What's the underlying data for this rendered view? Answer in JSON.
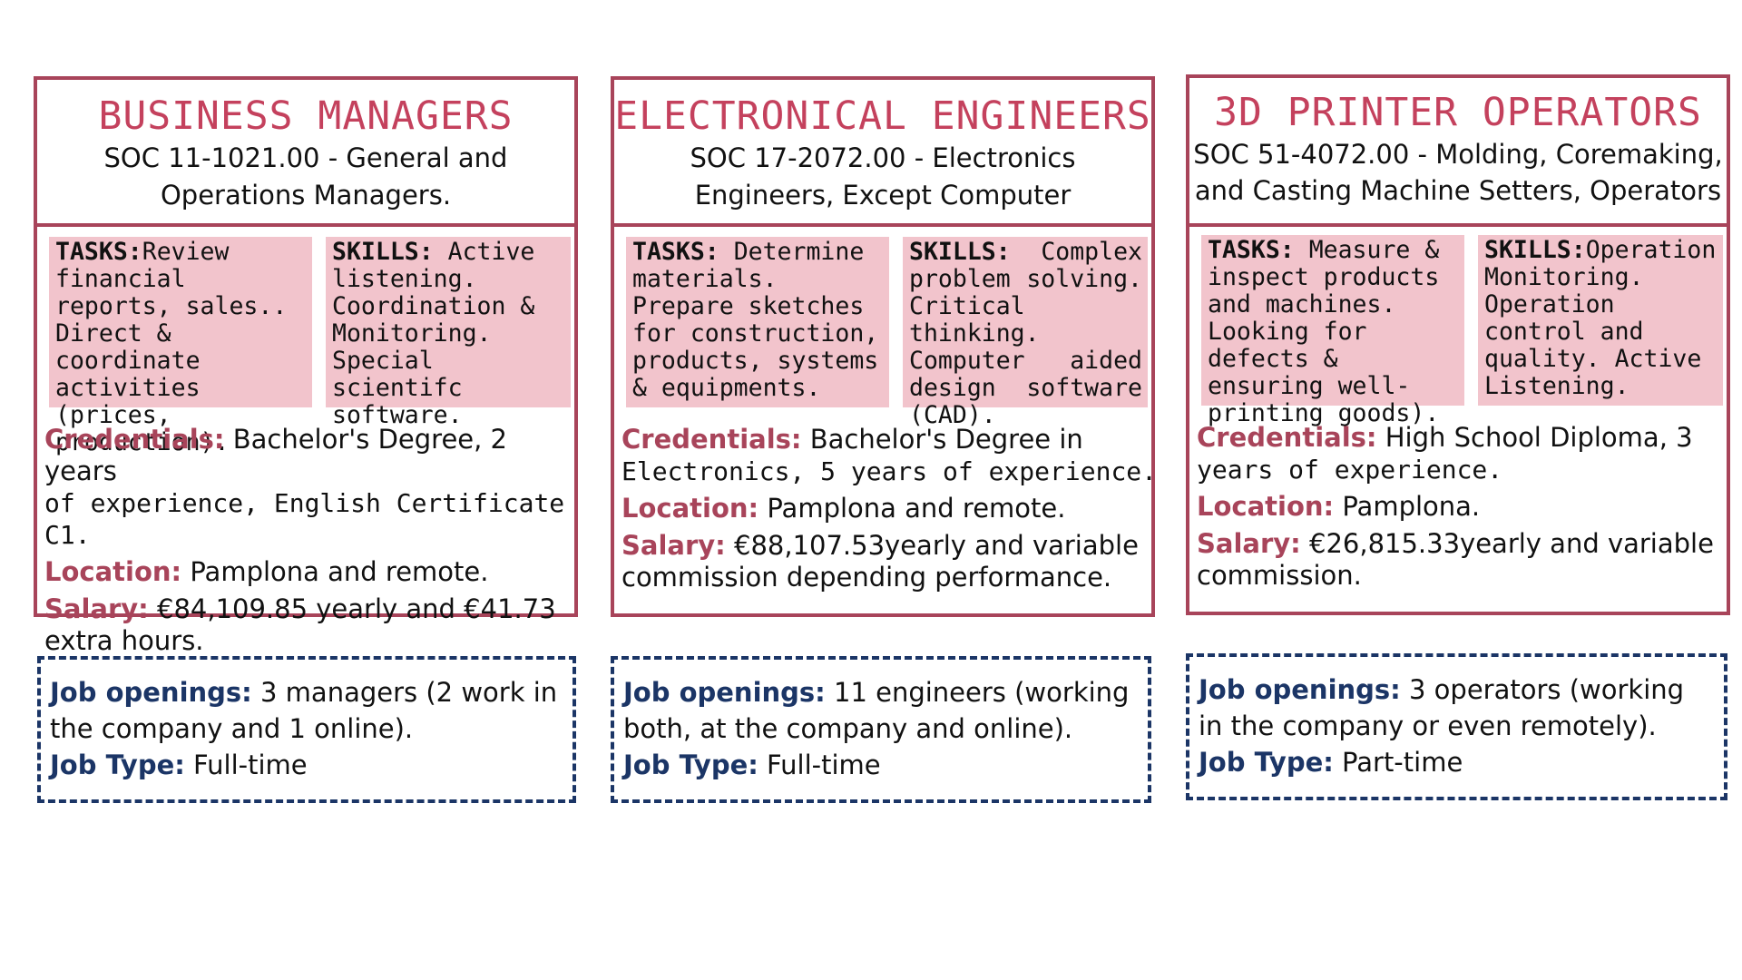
{
  "cards": [
    {
      "title": "BUSINESS MANAGERS",
      "soc_line1": "SOC 11-1021.00 - General and",
      "soc_line2": "Operations Managers.",
      "tasks_label": "TASKS:",
      "tasks_text": "Review financial reports, sales.. Direct & coordinate activities (prices, production).",
      "skills_label": "SKILLS:",
      "skills_text": " Active listening. Coordination & Monitoring. Special scientifc software.",
      "credentials_label": "Credentials:",
      "credentials_text": " Bachelor's Degree, 2 years",
      "credentials_text2": "of experience, English Certificate C1.",
      "location_label": "Location:",
      "location_text": " Pamplona and remote.",
      "salary_label": "Salary:",
      "salary_text": " €84,109.85 yearly and €41.73",
      "salary_text2": "extra hours.",
      "openings_label": "Job openings:",
      "openings_text": " 3 managers (2 work in",
      "openings_text2": "the company and 1 online).",
      "type_label": "Job Type:",
      "type_text": " Full-time"
    },
    {
      "title": "ELECTRONICAL ENGINEERS",
      "soc_line1": "SOC 17-2072.00 - Electronics",
      "soc_line2": "Engineers, Except Computer",
      "tasks_label": "TASKS:",
      "tasks_text": " Determine materials. Prepare sketches for construction, products, systems & equipments.",
      "skills_label": "SKILLS:",
      "skills_text": " Complex problem solving. Critical thinking. Computer aided design software (CAD).",
      "credentials_label": "Credentials:",
      "credentials_text": " Bachelor's Degree in",
      "credentials_text2": "Electronics, 5 years of experience.",
      "location_label": "Location:",
      "location_text": " Pamplona and remote.",
      "salary_label": "Salary:",
      "salary_text": " €88,107.53yearly and variable",
      "salary_text2": "commission depending performance.",
      "openings_label": "Job openings:",
      "openings_text": " 11 engineers (working",
      "openings_text2": "both, at the company and online).",
      "type_label": "Job Type:",
      "type_text": " Full-time"
    },
    {
      "title": "3D PRINTER OPERATORS",
      "soc_line1": "SOC 51-4072.00 - Molding, Coremaking,",
      "soc_line2": "and Casting Machine Setters, Operators",
      "tasks_label": "TASKS:",
      "tasks_text": " Measure & inspect products and machines. Looking for defects & ensuring well-printing goods).",
      "skills_label": "SKILLS:",
      "skills_text": "Operation Monitoring. Operation control and quality. Active Listening.",
      "credentials_label": "Credentials:",
      "credentials_text": " High School Diploma, 3",
      "credentials_text2": "years of experience.",
      "location_label": "Location:",
      "location_text": " Pamplona.",
      "salary_label": "Salary:",
      "salary_text": " €26,815.33yearly and variable",
      "salary_text2": "commission.",
      "openings_label": "Job openings:",
      "openings_text": " 3 operators (working",
      "openings_text2": "in the company or  even remotely).",
      "type_label": "Job Type:",
      "type_text": " Part-time"
    }
  ]
}
